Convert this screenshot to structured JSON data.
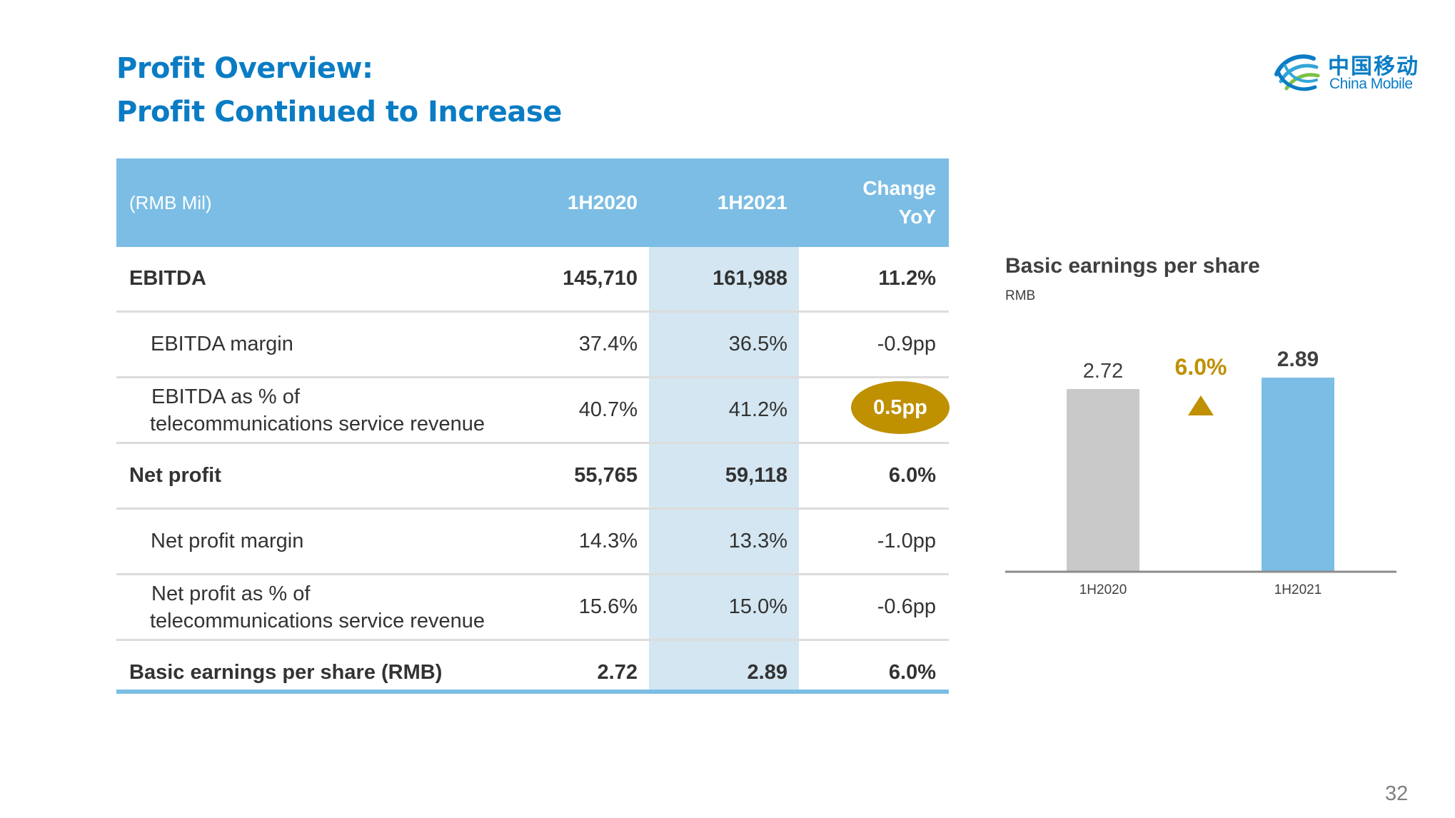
{
  "title": {
    "line1": "Profit Overview:",
    "line2": "Profit Continued to Increase"
  },
  "logo": {
    "chinese": "中国移动",
    "english": "China Mobile"
  },
  "table": {
    "unit": "(RMB Mil)",
    "headers": [
      "1H2020",
      "1H2021",
      "Change",
      "YoY"
    ],
    "rows": [
      {
        "label": "EBITDA",
        "v2020": "145,710",
        "v2021": "161,988",
        "change": "11.2%"
      },
      {
        "label": "EBITDA margin",
        "v2020": "37.4%",
        "v2021": "36.5%",
        "change": "-0.9pp"
      },
      {
        "label1": "EBITDA as % of",
        "label2": "telecommunications service revenue",
        "v2020": "40.7%",
        "v2021": "41.2%",
        "change": "0.5pp"
      },
      {
        "label": "Net profit",
        "v2020": "55,765",
        "v2021": "59,118",
        "change": "6.0%"
      },
      {
        "label": "Net profit margin",
        "v2020": "14.3%",
        "v2021": "13.3%",
        "change": "-1.0pp"
      },
      {
        "label1": "Net profit as % of",
        "label2": "telecommunications service revenue",
        "v2020": "15.6%",
        "v2021": "15.0%",
        "change": "-0.6pp"
      },
      {
        "label": "Basic earnings per share (RMB)",
        "v2020": "2.72",
        "v2021": "2.89",
        "change": "6.0%"
      }
    ],
    "highlight_color": "#bf9000",
    "header_color": "#7bbde4"
  },
  "chart_data": {
    "type": "bar",
    "title": "Basic earnings per share",
    "unit": "RMB",
    "categories": [
      "1H2020",
      "1H2021"
    ],
    "values": [
      2.72,
      2.89
    ],
    "value_labels": [
      "2.72",
      "2.89"
    ],
    "colors": [
      "#c9c9c9",
      "#7bbde4"
    ],
    "growth_label": "6.0%",
    "growth_color": "#bf9000",
    "ylim": [
      0,
      3.2
    ]
  },
  "page_number": "32"
}
